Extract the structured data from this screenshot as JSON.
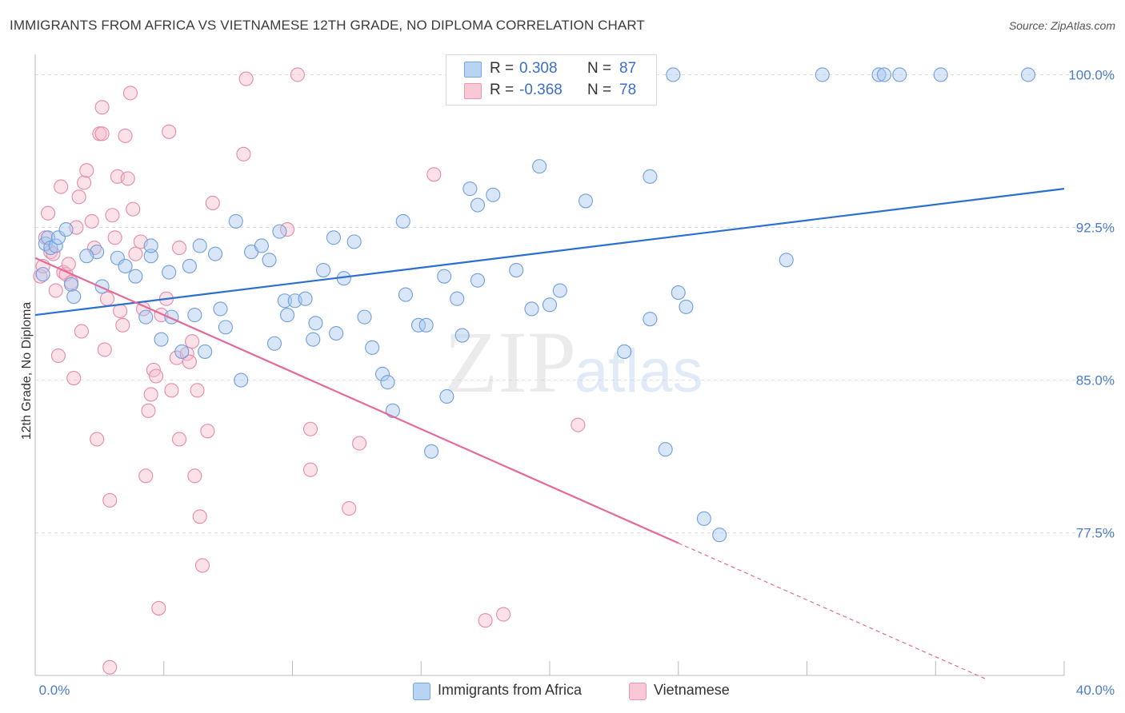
{
  "title": "IMMIGRANTS FROM AFRICA VS VIETNAMESE 12TH GRADE, NO DIPLOMA CORRELATION CHART",
  "source": "Source: ZipAtlas.com",
  "watermark": {
    "zip": "ZIP",
    "atlas": "atlas"
  },
  "legend": {
    "series1": {
      "r_label": "R =",
      "r_value": "0.308",
      "n_label": "N =",
      "n_value": "87"
    },
    "series2": {
      "r_label": "R =",
      "r_value": "-0.368",
      "n_label": "N =",
      "n_value": "78"
    }
  },
  "bottom_legend": {
    "series1": "Immigrants from Africa",
    "series2": "Vietnamese"
  },
  "colors": {
    "blue_fill": "#a9c8ef",
    "blue_stroke": "#6f9fdc",
    "blue_line": "#2b6fcf",
    "pink_fill": "#f6bccd",
    "pink_stroke": "#e68aa8",
    "pink_line": "#e46a9a",
    "tick_text": "#4a7ccb",
    "grid": "#dddddd"
  },
  "chart_data": {
    "type": "scatter",
    "title": "IMMIGRANTS FROM AFRICA VS VIETNAMESE 12TH GRADE, NO DIPLOMA CORRELATION CHART",
    "xlabel": "",
    "ylabel": "12th Grade, No Diploma",
    "xlim": [
      0,
      40
    ],
    "ylim": [
      70.5,
      101
    ],
    "x_tick_labels": [
      "0.0%",
      "40.0%"
    ],
    "y_ticks": [
      77.5,
      85.0,
      92.5,
      100.0
    ],
    "y_tick_labels": [
      "77.5%",
      "85.0%",
      "92.5%",
      "100.0%"
    ],
    "grid": true,
    "legend_position": "top-center",
    "series": [
      {
        "name": "Immigrants from Africa",
        "trend": {
          "x": [
            0,
            40
          ],
          "y": [
            88.2,
            94.4
          ]
        },
        "points": [
          [
            0.3,
            90.2
          ],
          [
            0.4,
            91.7
          ],
          [
            0.5,
            92.0
          ],
          [
            0.6,
            91.5
          ],
          [
            0.8,
            91.6
          ],
          [
            0.9,
            92.0
          ],
          [
            1.2,
            92.4
          ],
          [
            1.4,
            89.7
          ],
          [
            1.5,
            89.1
          ],
          [
            2.4,
            91.3
          ],
          [
            2.0,
            91.1
          ],
          [
            2.6,
            89.6
          ],
          [
            3.2,
            91.0
          ],
          [
            3.5,
            90.6
          ],
          [
            3.9,
            90.1
          ],
          [
            4.3,
            88.1
          ],
          [
            4.5,
            91.1
          ],
          [
            4.5,
            91.6
          ],
          [
            4.9,
            87.0
          ],
          [
            5.2,
            90.3
          ],
          [
            5.3,
            88.1
          ],
          [
            5.7,
            86.4
          ],
          [
            6.0,
            90.6
          ],
          [
            6.2,
            88.2
          ],
          [
            6.4,
            91.6
          ],
          [
            6.6,
            86.4
          ],
          [
            7.0,
            91.2
          ],
          [
            7.2,
            88.5
          ],
          [
            7.4,
            87.6
          ],
          [
            7.8,
            92.8
          ],
          [
            8.0,
            85.0
          ],
          [
            8.4,
            91.3
          ],
          [
            8.8,
            91.6
          ],
          [
            9.1,
            90.9
          ],
          [
            9.3,
            86.8
          ],
          [
            9.5,
            92.3
          ],
          [
            9.7,
            88.9
          ],
          [
            9.8,
            88.2
          ],
          [
            10.1,
            88.9
          ],
          [
            10.5,
            89.0
          ],
          [
            10.8,
            87.0
          ],
          [
            10.9,
            87.8
          ],
          [
            11.2,
            90.4
          ],
          [
            11.6,
            92.0
          ],
          [
            11.7,
            87.3
          ],
          [
            12.0,
            90.0
          ],
          [
            12.4,
            91.8
          ],
          [
            12.8,
            88.1
          ],
          [
            13.1,
            86.6
          ],
          [
            13.5,
            85.3
          ],
          [
            13.7,
            84.9
          ],
          [
            13.9,
            83.5
          ],
          [
            14.3,
            92.8
          ],
          [
            14.4,
            89.2
          ],
          [
            14.9,
            87.7
          ],
          [
            15.2,
            87.7
          ],
          [
            15.4,
            81.5
          ],
          [
            15.9,
            90.1
          ],
          [
            16.0,
            84.2
          ],
          [
            16.4,
            89.0
          ],
          [
            16.6,
            87.2
          ],
          [
            16.9,
            94.4
          ],
          [
            17.2,
            89.9
          ],
          [
            17.2,
            93.6
          ],
          [
            17.8,
            94.1
          ],
          [
            18.7,
            90.4
          ],
          [
            19.3,
            88.5
          ],
          [
            19.6,
            95.5
          ],
          [
            20.0,
            88.7
          ],
          [
            20.4,
            89.4
          ],
          [
            20.6,
            100.0
          ],
          [
            21.4,
            93.8
          ],
          [
            22.9,
            86.4
          ],
          [
            23.9,
            88.0
          ],
          [
            23.9,
            95.0
          ],
          [
            24.5,
            81.6
          ],
          [
            25.0,
            89.3
          ],
          [
            25.3,
            88.6
          ],
          [
            24.8,
            100.0
          ],
          [
            26.0,
            78.2
          ],
          [
            26.6,
            77.4
          ],
          [
            29.2,
            90.9
          ],
          [
            30.6,
            100.0
          ],
          [
            32.8,
            100.0
          ],
          [
            33.0,
            100.0
          ],
          [
            33.6,
            100.0
          ],
          [
            35.2,
            100.0
          ],
          [
            38.6,
            100.0
          ]
        ]
      },
      {
        "name": "Vietnamese",
        "trend": {
          "x": [
            0,
            25
          ],
          "y": [
            91.0,
            77.0
          ]
        },
        "trend_dashed": {
          "x": [
            25,
            37
          ],
          "y": [
            77.0,
            70.3
          ]
        },
        "points": [
          [
            0.2,
            90.1
          ],
          [
            0.3,
            90.6
          ],
          [
            0.4,
            92.0
          ],
          [
            0.5,
            93.2
          ],
          [
            0.6,
            91.3
          ],
          [
            0.7,
            91.2
          ],
          [
            0.8,
            89.4
          ],
          [
            0.9,
            86.2
          ],
          [
            1.0,
            94.5
          ],
          [
            1.1,
            90.3
          ],
          [
            1.2,
            90.2
          ],
          [
            1.3,
            90.7
          ],
          [
            1.4,
            89.8
          ],
          [
            1.5,
            85.1
          ],
          [
            1.6,
            92.5
          ],
          [
            1.7,
            94.0
          ],
          [
            1.8,
            87.4
          ],
          [
            1.9,
            94.7
          ],
          [
            2.0,
            95.3
          ],
          [
            2.2,
            92.8
          ],
          [
            2.3,
            91.5
          ],
          [
            2.4,
            82.1
          ],
          [
            2.5,
            97.1
          ],
          [
            2.6,
            97.1
          ],
          [
            2.6,
            98.4
          ],
          [
            2.7,
            86.5
          ],
          [
            2.8,
            89.0
          ],
          [
            2.9,
            79.1
          ],
          [
            3.0,
            93.1
          ],
          [
            3.1,
            92.0
          ],
          [
            3.2,
            95.0
          ],
          [
            3.3,
            88.4
          ],
          [
            3.4,
            87.7
          ],
          [
            3.5,
            97.0
          ],
          [
            3.6,
            94.9
          ],
          [
            3.7,
            99.1
          ],
          [
            3.8,
            93.4
          ],
          [
            3.9,
            91.2
          ],
          [
            4.1,
            91.8
          ],
          [
            4.2,
            88.5
          ],
          [
            4.3,
            80.3
          ],
          [
            4.4,
            83.5
          ],
          [
            4.5,
            84.3
          ],
          [
            4.6,
            85.5
          ],
          [
            4.7,
            85.2
          ],
          [
            4.8,
            73.8
          ],
          [
            4.9,
            88.2
          ],
          [
            5.1,
            89.0
          ],
          [
            5.2,
            97.2
          ],
          [
            5.3,
            84.5
          ],
          [
            5.5,
            86.1
          ],
          [
            5.6,
            91.5
          ],
          [
            5.6,
            82.1
          ],
          [
            5.9,
            86.3
          ],
          [
            6.0,
            85.9
          ],
          [
            6.1,
            86.9
          ],
          [
            6.2,
            80.3
          ],
          [
            6.3,
            84.5
          ],
          [
            6.4,
            78.3
          ],
          [
            6.5,
            75.9
          ],
          [
            6.7,
            82.5
          ],
          [
            6.9,
            93.7
          ],
          [
            8.1,
            96.1
          ],
          [
            8.2,
            99.8
          ],
          [
            9.8,
            92.4
          ],
          [
            10.2,
            100.0
          ],
          [
            10.7,
            82.6
          ],
          [
            10.7,
            80.6
          ],
          [
            12.2,
            78.7
          ],
          [
            12.6,
            81.9
          ],
          [
            15.5,
            95.1
          ],
          [
            17.5,
            73.2
          ],
          [
            18.2,
            73.5
          ],
          [
            21.1,
            82.8
          ],
          [
            2.9,
            70.9
          ]
        ]
      }
    ]
  }
}
